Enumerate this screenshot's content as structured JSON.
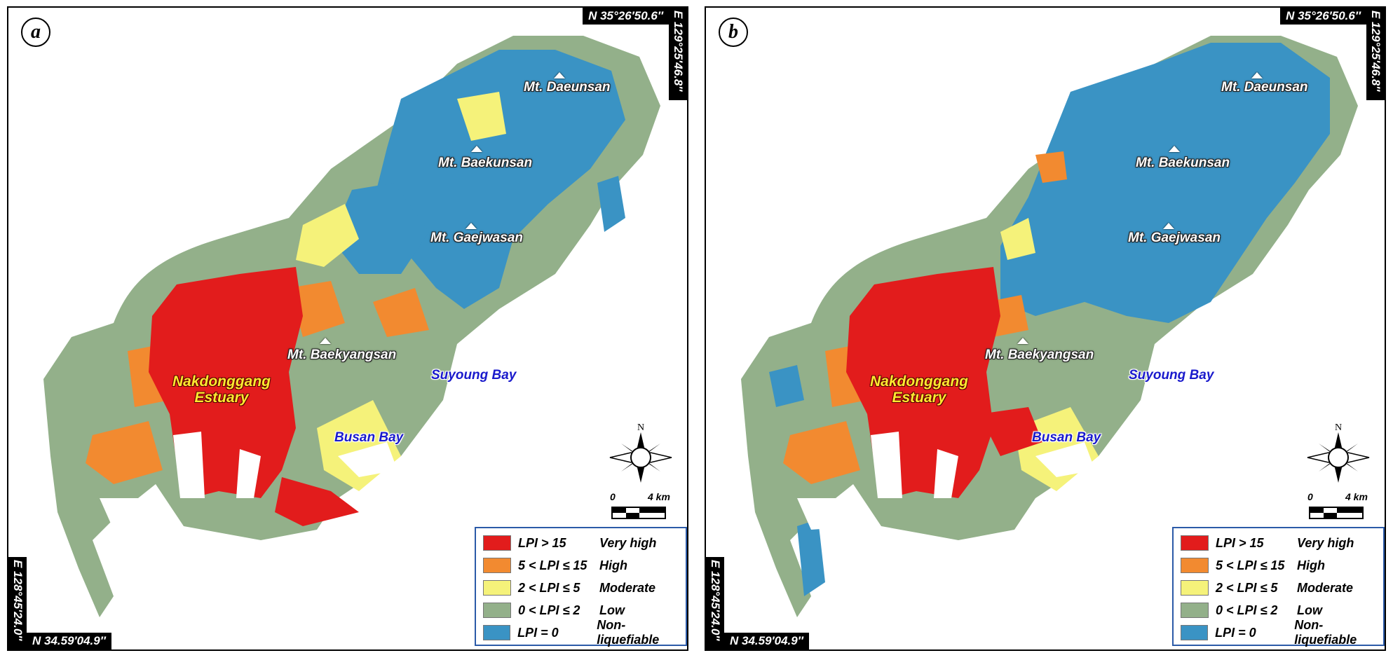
{
  "legend": {
    "items": [
      {
        "range": "LPI > 15",
        "label": "Very high",
        "color": "#e21c1c"
      },
      {
        "range": "5 < LPI ≤ 15",
        "label": "High",
        "color": "#f28a30"
      },
      {
        "range": "2 < LPI ≤ 5",
        "label": "Moderate",
        "color": "#f5f27a"
      },
      {
        "range": "0 < LPI ≤ 2",
        "label": "Low",
        "color": "#93b08a"
      },
      {
        "range": "LPI = 0",
        "label": "Non-liquefiable",
        "color": "#3a93c4"
      }
    ]
  },
  "coordinates": {
    "top_right_lat": "N 35°26′50.6″",
    "top_right_lon": "E 129°25′46.8″",
    "bottom_left_lat": "N 34.59′04.9″",
    "bottom_left_lon": "E 128°45′24.0″"
  },
  "place_labels": {
    "mt_daeunsan": "Mt. Daeunsan",
    "mt_baekunsan": "Mt. Baekunsan",
    "mt_gaejwasan": "Mt. Gaejwasan",
    "mt_baekyangsan": "Mt. Baekyangsan",
    "nakdonggang_line1": "Nakdonggang",
    "nakdonggang_line2": "Estuary",
    "suyoung_bay": "Suyoung Bay",
    "busan_bay": "Busan Bay"
  },
  "north_arrow": {
    "label": "N"
  },
  "scale_bar": {
    "start": "0",
    "end": "4 km"
  },
  "panels": [
    {
      "id": "a",
      "letter": "a"
    },
    {
      "id": "b",
      "letter": "b"
    }
  ]
}
